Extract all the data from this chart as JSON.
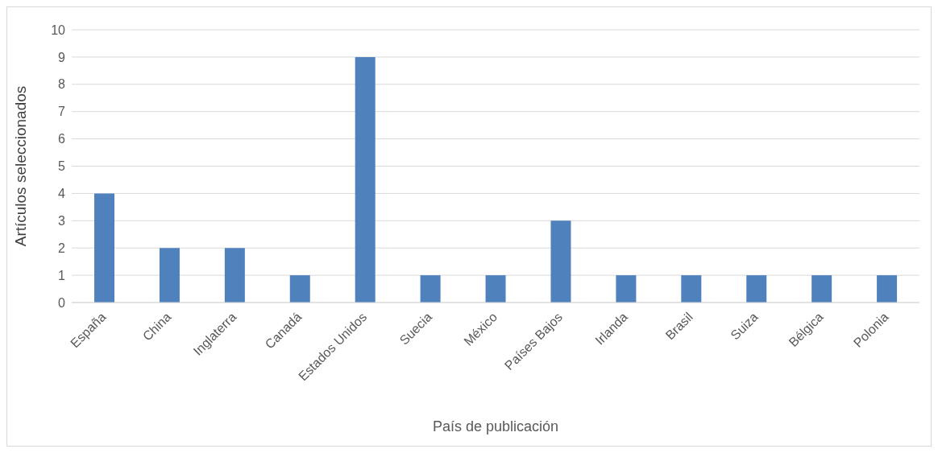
{
  "chart_data": {
    "type": "bar",
    "xlabel": "País de publicación",
    "ylabel": "Artículos seleccionados",
    "categories": [
      "España",
      "China",
      "Inglaterra",
      "Canadá",
      "Estados Unidos",
      "Suecia",
      "México",
      "Países Bajos",
      "Irlanda",
      "Brasil",
      "Suiza",
      "Bélgica",
      "Polonia"
    ],
    "values": [
      4,
      2,
      2,
      1,
      9,
      1,
      1,
      3,
      1,
      1,
      1,
      1,
      1
    ],
    "color": "#4f81bd",
    "ylim": [
      0,
      10
    ],
    "yticks": [
      0,
      1,
      2,
      3,
      4,
      5,
      6,
      7,
      8,
      9,
      10
    ],
    "grid": "y"
  }
}
